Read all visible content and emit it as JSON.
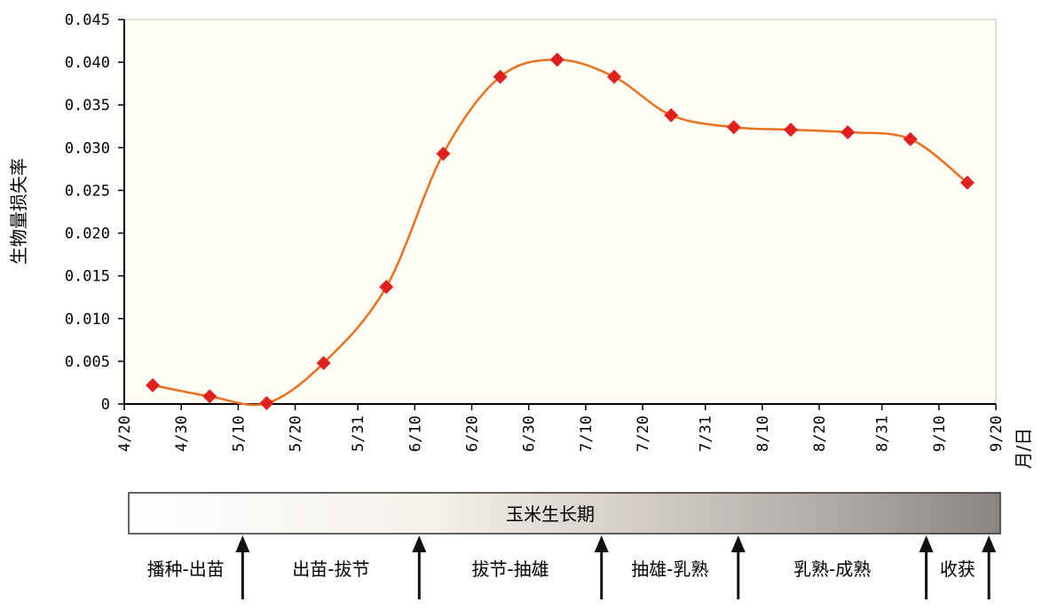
{
  "chart_data": {
    "type": "line",
    "ylabel": "生物量损失率",
    "xlabel": "月/日",
    "y_ticks": [
      "0",
      "0.005",
      "0.010",
      "0.015",
      "0.020",
      "0.025",
      "0.030",
      "0.035",
      "0.040",
      "0.045"
    ],
    "ylim": [
      0,
      0.045
    ],
    "x_ticks": [
      {
        "label": "4/20",
        "day": 0
      },
      {
        "label": "4/30",
        "day": 10
      },
      {
        "label": "5/10",
        "day": 20
      },
      {
        "label": "5/20",
        "day": 30
      },
      {
        "label": "5/31",
        "day": 41
      },
      {
        "label": "6/10",
        "day": 51
      },
      {
        "label": "6/20",
        "day": 61
      },
      {
        "label": "6/30",
        "day": 71
      },
      {
        "label": "7/10",
        "day": 81
      },
      {
        "label": "7/20",
        "day": 91
      },
      {
        "label": "7/31",
        "day": 102
      },
      {
        "label": "8/10",
        "day": 112
      },
      {
        "label": "8/20",
        "day": 122
      },
      {
        "label": "8/31",
        "day": 133
      },
      {
        "label": "9/10",
        "day": 143
      },
      {
        "label": "9/20",
        "day": 153
      }
    ],
    "xlim": [
      0,
      153
    ],
    "grid": false,
    "series": [
      {
        "color": "#e8701e",
        "marker_color": "#e0201e",
        "points": [
          {
            "day": 5,
            "value": 0.0022
          },
          {
            "day": 15,
            "value": 0.0009
          },
          {
            "day": 25,
            "value": 0.0001
          },
          {
            "day": 35,
            "value": 0.0048
          },
          {
            "day": 46,
            "value": 0.0137
          },
          {
            "day": 56,
            "value": 0.0293
          },
          {
            "day": 66,
            "value": 0.0383
          },
          {
            "day": 76,
            "value": 0.0403
          },
          {
            "day": 86,
            "value": 0.0383
          },
          {
            "day": 96,
            "value": 0.0338
          },
          {
            "day": 107,
            "value": 0.0324
          },
          {
            "day": 117,
            "value": 0.0321
          },
          {
            "day": 127,
            "value": 0.0318
          },
          {
            "day": 138,
            "value": 0.031
          },
          {
            "day": 148,
            "value": 0.0259
          }
        ]
      }
    ],
    "growth_period": {
      "title": "玉米生长期",
      "stages": [
        {
          "label": "播种-出苗",
          "start_day": 0,
          "end_day": 20
        },
        {
          "label": "出苗-拔节",
          "start_day": 20,
          "end_day": 51
        },
        {
          "label": "拔节-抽雄",
          "start_day": 51,
          "end_day": 83
        },
        {
          "label": "抽雄-乳熟",
          "start_day": 83,
          "end_day": 107
        },
        {
          "label": "乳熟-成熟",
          "start_day": 107,
          "end_day": 140
        },
        {
          "label": "收获",
          "start_day": 140,
          "end_day": 151
        }
      ],
      "arrow_days": [
        20,
        51,
        83,
        107,
        140,
        151
      ]
    }
  }
}
